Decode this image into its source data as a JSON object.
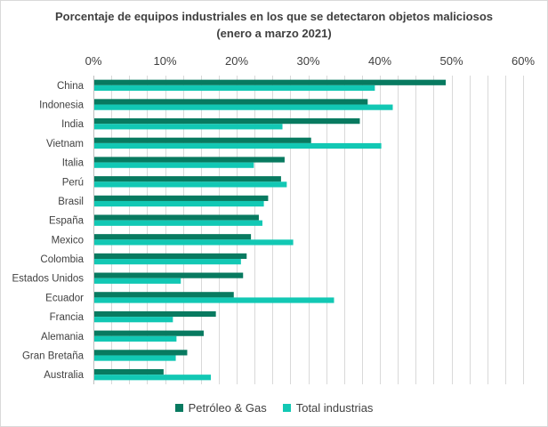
{
  "colors": {
    "oil_gas": "#087a60",
    "total": "#12c8b4",
    "grid": "#d9d9d9",
    "text": "#404040"
  },
  "chart_data": {
    "type": "bar",
    "orientation": "horizontal",
    "title": "Porcentaje de equipos industriales en los que se detectaron objetos maliciosos",
    "subtitle": "(enero a marzo 2021)",
    "xlim": [
      0,
      60
    ],
    "tick_values": [
      0,
      10,
      20,
      30,
      40,
      50,
      60
    ],
    "tick_labels": [
      "0%",
      "10%",
      "20%",
      "30%",
      "40%",
      "50%",
      "60%"
    ],
    "minor_grid_step": 2.5,
    "grid": true,
    "legend_position": "bottom",
    "categories": [
      "China",
      "Indonesia",
      "India",
      "Vietnam",
      "Italia",
      "Perú",
      "Brasil",
      "España",
      "Mexico",
      "Colombia",
      "Estados Unidos",
      "Ecuador",
      "Francia",
      "Alemania",
      "Gran Bretaña",
      "Australia"
    ],
    "series": [
      {
        "name": "Petróleo & Gas",
        "color": "#087a60",
        "values": [
          49.2,
          38.3,
          37.2,
          30.4,
          26.7,
          26.2,
          24.4,
          23.1,
          22.0,
          21.4,
          20.9,
          19.6,
          17.1,
          15.4,
          13.1,
          9.8
        ]
      },
      {
        "name": "Total industrias",
        "color": "#12c8b4",
        "values": [
          39.3,
          41.8,
          26.4,
          40.2,
          22.4,
          27.0,
          23.8,
          23.6,
          27.9,
          20.6,
          12.2,
          33.6,
          11.1,
          11.6,
          11.5,
          16.4
        ]
      }
    ]
  }
}
